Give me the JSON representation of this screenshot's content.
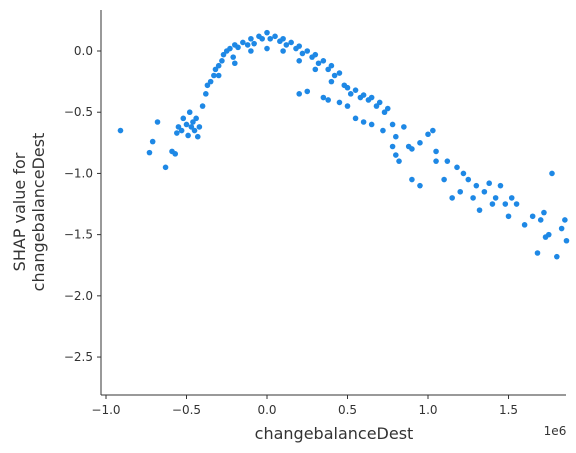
{
  "chart_data": {
    "type": "scatter",
    "xlabel": "changebalanceDest",
    "ylabel": [
      "SHAP value for",
      "changebalanceDest"
    ],
    "x_offset_label": "1e6",
    "color": "#1E88E5",
    "xlim": [
      -1.031,
      1.857
    ],
    "ylim": [
      -2.81,
      0.335
    ],
    "xticks": [
      {
        "value": -1.0,
        "label": "−1.0"
      },
      {
        "value": -0.5,
        "label": "−0.5"
      },
      {
        "value": 0.0,
        "label": "0.0"
      },
      {
        "value": 0.5,
        "label": "0.5"
      },
      {
        "value": 1.0,
        "label": "1.0"
      },
      {
        "value": 1.5,
        "label": "1.5"
      }
    ],
    "yticks": [
      {
        "value": 0.0,
        "label": "0.0"
      },
      {
        "value": -0.5,
        "label": "−0.5"
      },
      {
        "value": -1.0,
        "label": "−1.0"
      },
      {
        "value": -1.5,
        "label": "−1.5"
      },
      {
        "value": -2.0,
        "label": "−2.0"
      },
      {
        "value": -2.5,
        "label": "−2.5"
      }
    ],
    "x": [
      -0.91,
      -0.73,
      -0.71,
      -0.68,
      -0.63,
      -0.59,
      -0.57,
      -0.56,
      -0.55,
      -0.53,
      -0.52,
      -0.5,
      -0.49,
      -0.48,
      -0.47,
      -0.46,
      -0.45,
      -0.44,
      -0.43,
      -0.42,
      -0.4,
      -0.38,
      -0.37,
      -0.35,
      -0.33,
      -0.32,
      -0.3,
      -0.28,
      -0.27,
      -0.25,
      -0.23,
      -0.21,
      -0.2,
      -0.18,
      -0.15,
      -0.12,
      -0.1,
      -0.08,
      -0.05,
      -0.03,
      0.0,
      0.02,
      0.05,
      0.08,
      0.1,
      0.12,
      0.15,
      0.18,
      0.2,
      0.22,
      0.25,
      0.28,
      0.3,
      0.32,
      0.35,
      0.38,
      0.4,
      0.42,
      0.45,
      0.48,
      0.5,
      0.52,
      0.55,
      0.58,
      0.6,
      0.63,
      0.65,
      0.68,
      0.7,
      0.73,
      0.75,
      0.2,
      0.25,
      0.35,
      0.38,
      0.45,
      0.5,
      0.55,
      0.6,
      0.65,
      0.72,
      0.78,
      0.8,
      0.85,
      0.88,
      0.9,
      0.95,
      1.0,
      1.03,
      1.05,
      0.82,
      0.9,
      0.95,
      0.78,
      0.8,
      -0.1,
      0.0,
      0.1,
      0.2,
      0.3,
      0.4,
      -0.2,
      -0.3,
      1.05,
      1.1,
      1.12,
      1.15,
      1.18,
      1.2,
      1.22,
      1.25,
      1.28,
      1.3,
      1.32,
      1.35,
      1.38,
      1.4,
      1.42,
      1.45,
      1.48,
      1.5,
      1.52,
      1.55,
      1.6,
      1.65,
      1.68,
      1.7,
      1.72,
      1.73,
      1.75,
      1.77,
      1.8,
      1.83,
      1.85,
      1.86
    ],
    "values": [
      -0.65,
      -0.83,
      -0.74,
      -0.58,
      -0.95,
      -0.82,
      -0.84,
      -0.67,
      -0.62,
      -0.65,
      -0.55,
      -0.6,
      -0.69,
      -0.5,
      -0.62,
      -0.58,
      -0.65,
      -0.55,
      -0.7,
      -0.62,
      -0.45,
      -0.35,
      -0.28,
      -0.25,
      -0.2,
      -0.15,
      -0.12,
      -0.08,
      -0.03,
      0.0,
      0.02,
      -0.05,
      0.05,
      0.03,
      0.07,
      0.05,
      0.1,
      0.06,
      0.12,
      0.1,
      0.15,
      0.1,
      0.12,
      0.08,
      0.1,
      0.05,
      0.07,
      0.02,
      0.04,
      -0.02,
      0.0,
      -0.05,
      -0.03,
      -0.1,
      -0.08,
      -0.15,
      -0.12,
      -0.2,
      -0.18,
      -0.28,
      -0.3,
      -0.35,
      -0.32,
      -0.38,
      -0.36,
      -0.4,
      -0.38,
      -0.45,
      -0.42,
      -0.5,
      -0.47,
      -0.35,
      -0.33,
      -0.38,
      -0.4,
      -0.42,
      -0.45,
      -0.55,
      -0.58,
      -0.6,
      -0.65,
      -0.6,
      -0.7,
      -0.62,
      -0.78,
      -0.8,
      -0.75,
      -0.68,
      -0.65,
      -0.82,
      -0.9,
      -1.05,
      -1.1,
      -0.78,
      -0.85,
      0.0,
      0.02,
      0.0,
      -0.08,
      -0.15,
      -0.25,
      -0.1,
      -0.2,
      -0.9,
      -1.05,
      -0.9,
      -1.2,
      -0.95,
      -1.15,
      -1.0,
      -1.05,
      -1.2,
      -1.1,
      -1.3,
      -1.15,
      -1.08,
      -1.25,
      -1.2,
      -1.1,
      -1.25,
      -1.35,
      -1.2,
      -1.25,
      -1.42,
      -1.35,
      -1.65,
      -1.38,
      -1.32,
      -1.52,
      -1.5,
      -1.0,
      -1.68,
      -1.45,
      -1.38,
      -1.55
    ]
  }
}
